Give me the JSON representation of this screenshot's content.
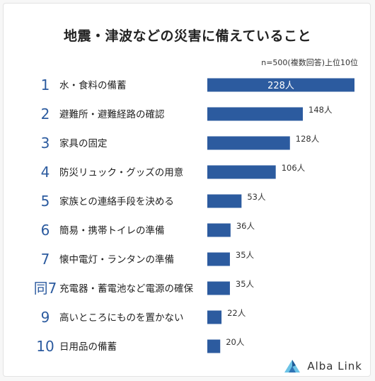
{
  "title": "地震・津波などの災害に備えていること",
  "note": "n=500(複数回答)上位10位",
  "brand": {
    "name": "Alba Link"
  },
  "colors": {
    "bar": "#2c5b9f",
    "rank": "#2c5b9f",
    "label": "#222222"
  },
  "chart_data": {
    "type": "bar",
    "orientation": "horizontal",
    "ranks": [
      "1",
      "2",
      "3",
      "4",
      "5",
      "6",
      "7",
      "同7",
      "9",
      "10"
    ],
    "categories": [
      "水・食料の備蓄",
      "避難所・避難経路の確認",
      "家具の固定",
      "防災リュック・グッズの用意",
      "家族との連絡手段を決める",
      "簡易・携帯トイレの準備",
      "懐中電灯・ランタンの準備",
      "充電器・蓄電池など電源の確保",
      "高いところにものを置かない",
      "日用品の備蓄"
    ],
    "values": [
      228,
      148,
      128,
      106,
      53,
      36,
      35,
      35,
      22,
      20
    ],
    "value_labels": [
      "228人",
      "148人",
      "128人",
      "106人",
      "53人",
      "36人",
      "35人",
      "35人",
      "22人",
      "20人"
    ],
    "xlim": [
      0,
      228
    ],
    "grid": false
  }
}
